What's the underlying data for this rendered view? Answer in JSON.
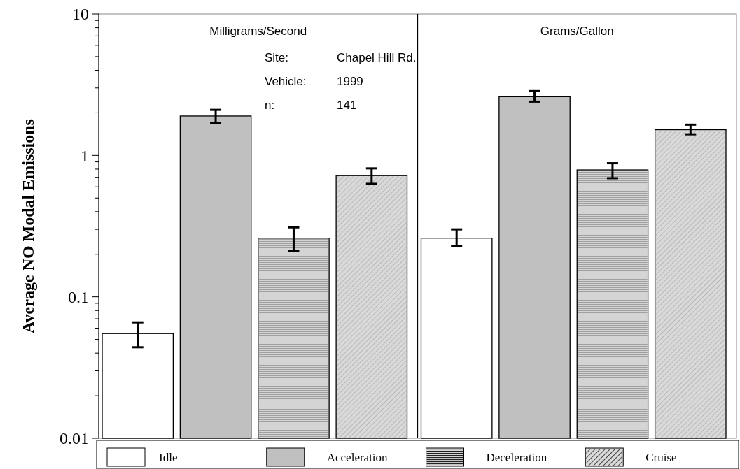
{
  "chart_data": {
    "type": "bar",
    "ylabel": "Average NO Modal Emissions",
    "categories": [
      "Milligrams/Second",
      "Grams/Gallon"
    ],
    "series": [
      {
        "name": "Idle",
        "color": "#ffffff",
        "values": [
          0.055,
          0.26
        ],
        "errors": [
          [
            0.044,
            0.066
          ],
          [
            0.23,
            0.3
          ]
        ]
      },
      {
        "name": "Acceleration",
        "color": "#c0c0c0",
        "values": [
          1.9,
          2.6
        ],
        "errors": [
          [
            1.7,
            2.1
          ],
          [
            2.4,
            2.85
          ]
        ]
      },
      {
        "name": "Deceleration",
        "color": "#d4d4d4",
        "values": [
          0.26,
          0.79
        ],
        "errors": [
          [
            0.21,
            0.31
          ],
          [
            0.69,
            0.88
          ]
        ]
      },
      {
        "name": "Cruise",
        "color": "#d9d9d9",
        "values": [
          0.72,
          1.52
        ],
        "errors": [
          [
            0.63,
            0.81
          ],
          [
            1.41,
            1.65
          ]
        ]
      }
    ],
    "annotations": [
      "Site: Chapel Hill Rd.",
      "Vehicle: 1999",
      "n: 141"
    ],
    "log": "y",
    "ylim": [
      0.01,
      10
    ],
    "yticks": [
      0.01,
      {
        "value": 0.02,
        "label": null
      },
      {
        "value": 0.03,
        "label": null
      },
      {
        "value": 0.04,
        "label": null
      },
      {
        "value": 0.05,
        "label": null
      },
      {
        "value": 0.06,
        "label": null
      },
      {
        "value": 0.07,
        "label": null
      },
      {
        "value": 0.08,
        "label": null
      },
      {
        "value": 0.09,
        "label": null
      },
      0.1,
      {
        "value": 0.2,
        "label": null
      },
      {
        "value": 0.3,
        "label": null
      },
      {
        "value": 0.4,
        "label": null
      },
      {
        "value": 0.5,
        "label": null
      },
      {
        "value": 0.6,
        "label": null
      },
      {
        "value": 0.7,
        "label": null
      },
      {
        "value": 0.8,
        "label": null
      },
      {
        "value": 0.9,
        "label": null
      },
      1,
      {
        "value": 2,
        "label": null
      },
      {
        "value": 3,
        "label": null
      },
      {
        "value": 4,
        "label": null
      },
      {
        "value": 5,
        "label": null
      },
      {
        "value": 6,
        "label": null
      },
      {
        "value": 7,
        "label": null
      },
      {
        "value": 8,
        "label": null
      },
      {
        "value": 9,
        "label": null
      },
      10
    ],
    "legend": "bottom"
  }
}
